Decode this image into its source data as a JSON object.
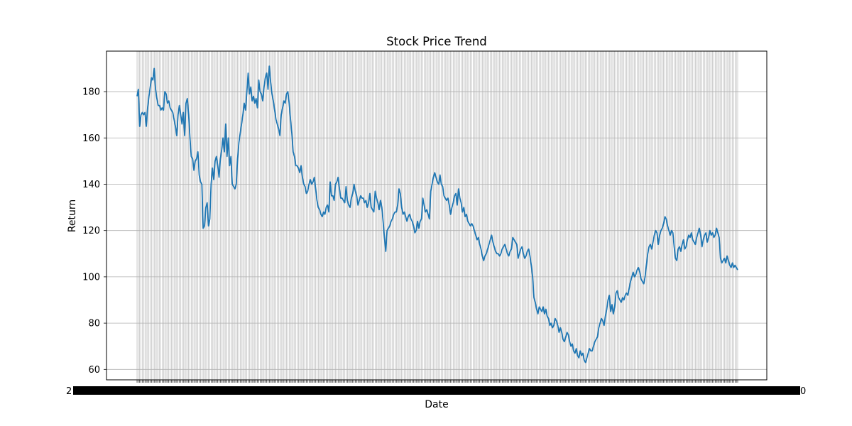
{
  "chart_data": {
    "type": "line",
    "title": "Stock Price Trend",
    "xlabel": "Date",
    "ylabel": "Return",
    "ylim": [
      55.5,
      197.5
    ],
    "yticks": [
      60,
      80,
      100,
      120,
      140,
      160,
      180
    ],
    "grid": true,
    "legend": "none",
    "x_tick_labels_note_visible_start": "2",
    "x_tick_labels_note_visible_end": "0",
    "line_color": "#1f77b4",
    "grid_color": "#b0b0b0",
    "series": [
      {
        "values": [
          178,
          181,
          165,
          170,
          171,
          170,
          171,
          165,
          173,
          178,
          182,
          186,
          185,
          190,
          181,
          177,
          174,
          174,
          172,
          173,
          172,
          180,
          179,
          175,
          176,
          173,
          172,
          171,
          168,
          165,
          161,
          170,
          174,
          170,
          166,
          171,
          161,
          175,
          177,
          170,
          160,
          152,
          151,
          146,
          150,
          151,
          154,
          144,
          141,
          140,
          121,
          122,
          130,
          132,
          122,
          125,
          140,
          147,
          142,
          150,
          152,
          148,
          143,
          151,
          155,
          160,
          154,
          166,
          152,
          160,
          148,
          152,
          140,
          139,
          138,
          140,
          151,
          158,
          162,
          166,
          170,
          175,
          172,
          180,
          188,
          179,
          182,
          176,
          178,
          175,
          177,
          173,
          185,
          180,
          179,
          176,
          182,
          186,
          188,
          181,
          191,
          184,
          179,
          176,
          172,
          168,
          166,
          164,
          161,
          170,
          173,
          176,
          175,
          179,
          180,
          175,
          168,
          162,
          154,
          152,
          148,
          148,
          147,
          145,
          148,
          143,
          140,
          139,
          136,
          137,
          140,
          142,
          140,
          141,
          143,
          138,
          133,
          130,
          129,
          127,
          126,
          128,
          127,
          130,
          131,
          128,
          141,
          135,
          135,
          133,
          140,
          141,
          143,
          138,
          134,
          134,
          133,
          132,
          139,
          133,
          131,
          130,
          134,
          136,
          140,
          137,
          135,
          131,
          133,
          135,
          134,
          134,
          132,
          133,
          130,
          132,
          136,
          130,
          129,
          128,
          137,
          134,
          132,
          129,
          133,
          130,
          124,
          117,
          111,
          120,
          121,
          122,
          124,
          125,
          127,
          128,
          128,
          131,
          138,
          136,
          130,
          127,
          128,
          126,
          124,
          126,
          127,
          125,
          124,
          122,
          119,
          120,
          124,
          121,
          124,
          125,
          134,
          131,
          128,
          129,
          127,
          125,
          137,
          140,
          143,
          145,
          143,
          141,
          140,
          144,
          140,
          139,
          135,
          134,
          133,
          134,
          131,
          127,
          130,
          132,
          135,
          136,
          131,
          138,
          134,
          132,
          128,
          130,
          126,
          127,
          124,
          123,
          122,
          123,
          122,
          120,
          118,
          116,
          117,
          114,
          112,
          109,
          107,
          109,
          110,
          112,
          114,
          116,
          118,
          115,
          113,
          111,
          110,
          110,
          109,
          110,
          112,
          113,
          114,
          112,
          110,
          109,
          111,
          112,
          117,
          116,
          115,
          114,
          108,
          110,
          112,
          113,
          110,
          108,
          109,
          111,
          112,
          109,
          105,
          100,
          91,
          89,
          86,
          84,
          87,
          86,
          85,
          87,
          84,
          86,
          83,
          82,
          79,
          80,
          78,
          79,
          82,
          81,
          79,
          76,
          78,
          76,
          73,
          72,
          74,
          76,
          75,
          72,
          70,
          71,
          68,
          67,
          69,
          66,
          65,
          68,
          66,
          67,
          64,
          63,
          65,
          67,
          69,
          68,
          68,
          70,
          72,
          73,
          74,
          78,
          80,
          82,
          81,
          79,
          83,
          86,
          90,
          92,
          85,
          88,
          84,
          87,
          93,
          94,
          91,
          90,
          89,
          91,
          90,
          92,
          93,
          92,
          95,
          98,
          100,
          102,
          100,
          101,
          103,
          104,
          102,
          99,
          98,
          97,
          100,
          105,
          110,
          113,
          114,
          112,
          115,
          118,
          120,
          119,
          114,
          118,
          120,
          121,
          123,
          126,
          125,
          122,
          120,
          118,
          120,
          119,
          113,
          108,
          107,
          112,
          113,
          111,
          114,
          116,
          112,
          113,
          116,
          118,
          117,
          119,
          116,
          115,
          114,
          117,
          119,
          121,
          118,
          113,
          116,
          118,
          119,
          115,
          117,
          120,
          118,
          119,
          117,
          118,
          121,
          119,
          117,
          108,
          106,
          107,
          108,
          106,
          109,
          107,
          105,
          104,
          106,
          104,
          105,
          104,
          103
        ]
      }
    ]
  }
}
